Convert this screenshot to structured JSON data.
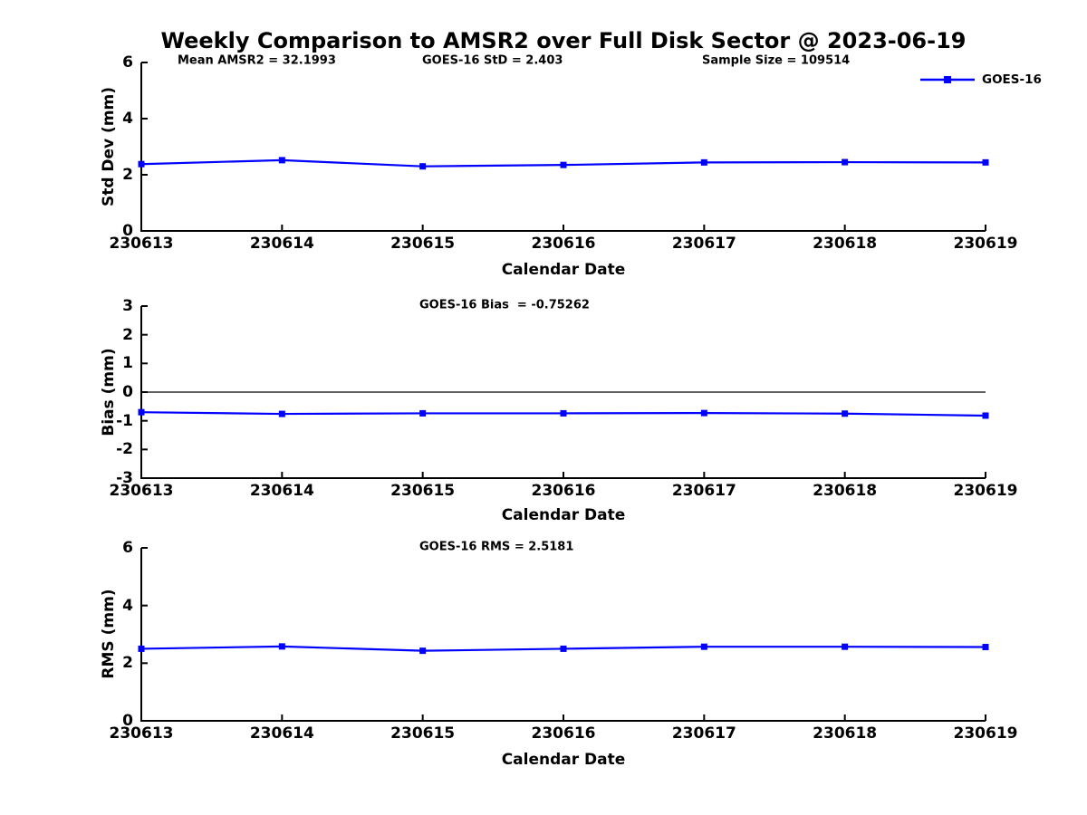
{
  "figure": {
    "title": "Weekly Comparison to AMSR2 over Full Disk Sector @ 2023-06-19",
    "legend": {
      "label": "GOES-16",
      "position": "top-right"
    },
    "colors": {
      "line": "#0000FF",
      "axis": "#000000",
      "text": "#000000",
      "background": "#FFFFFF"
    }
  },
  "chart_data": [
    {
      "type": "line",
      "xlabel": "Calendar Date",
      "ylabel": "Std Dev (mm)",
      "categories": [
        "230613",
        "230614",
        "230615",
        "230616",
        "230617",
        "230618",
        "230619"
      ],
      "series": [
        {
          "name": "GOES-16",
          "values": [
            2.38,
            2.52,
            2.3,
            2.35,
            2.44,
            2.45,
            2.44
          ]
        }
      ],
      "ylim": [
        0,
        6
      ],
      "yticks": [
        0,
        2,
        4,
        6
      ],
      "grid": false,
      "zero_line": false,
      "marker": "square",
      "annotations": [
        {
          "text": "Mean AMSR2 = 32.1993"
        },
        {
          "text": "GOES-16 StD = 2.403"
        },
        {
          "text": "Sample Size = 109514"
        }
      ]
    },
    {
      "type": "line",
      "xlabel": "Calendar Date",
      "ylabel": "Bias (mm)",
      "categories": [
        "230613",
        "230614",
        "230615",
        "230616",
        "230617",
        "230618",
        "230619"
      ],
      "series": [
        {
          "name": "GOES-16",
          "values": [
            -0.7,
            -0.76,
            -0.74,
            -0.74,
            -0.73,
            -0.75,
            -0.82
          ]
        }
      ],
      "ylim": [
        -3,
        3
      ],
      "yticks": [
        -3,
        -2,
        -1,
        0,
        1,
        2,
        3
      ],
      "grid": false,
      "zero_line": true,
      "marker": "square",
      "annotations": [
        {
          "text": "GOES-16 Bias  = -0.75262"
        }
      ]
    },
    {
      "type": "line",
      "xlabel": "Calendar Date",
      "ylabel": "RMS (mm)",
      "categories": [
        "230613",
        "230614",
        "230615",
        "230616",
        "230617",
        "230618",
        "230619"
      ],
      "series": [
        {
          "name": "GOES-16",
          "values": [
            2.5,
            2.58,
            2.43,
            2.5,
            2.57,
            2.57,
            2.56
          ]
        }
      ],
      "ylim": [
        0,
        6
      ],
      "yticks": [
        0,
        2,
        4,
        6
      ],
      "grid": false,
      "zero_line": false,
      "marker": "square",
      "annotations": [
        {
          "text": "GOES-16 RMS = 2.5181"
        }
      ]
    }
  ]
}
